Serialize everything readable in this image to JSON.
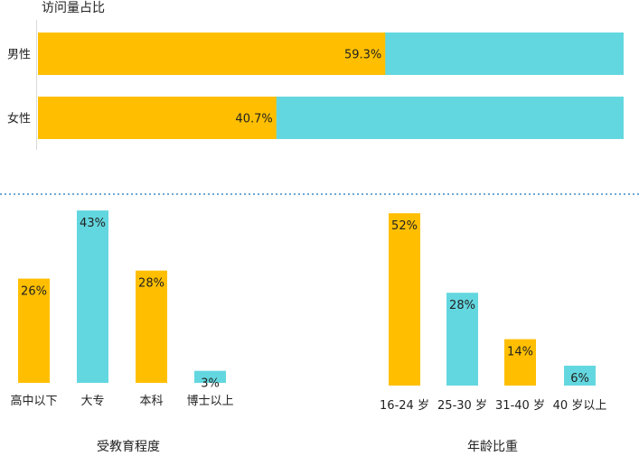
{
  "colors": {
    "orange": "#FFBF00",
    "cyan": "#63D7DF",
    "divider": "#6FA8D6"
  },
  "chart_data": [
    {
      "type": "bar",
      "orientation": "horizontal-stacked",
      "title": "访问量占比",
      "categories": [
        "男性",
        "女性"
      ],
      "values": [
        59.3,
        40.7
      ],
      "labels": [
        "59.3%",
        "40.7%"
      ],
      "total": 100,
      "xlim": [
        0,
        100
      ]
    },
    {
      "type": "bar",
      "title": "受教育程度",
      "categories": [
        "高中以下",
        "大专",
        "本科",
        "博士以上"
      ],
      "values": [
        26,
        43,
        28,
        3
      ],
      "labels": [
        "26%",
        "43%",
        "28%",
        "3%"
      ],
      "bar_colors": [
        "orange",
        "cyan",
        "orange",
        "cyan"
      ],
      "ylim": [
        0,
        50
      ]
    },
    {
      "type": "bar",
      "title": "年龄比重",
      "categories": [
        "16-24 岁",
        "25-30 岁",
        "31-40 岁",
        "40 岁以上"
      ],
      "values": [
        52,
        28,
        14,
        6
      ],
      "labels": [
        "52%",
        "28%",
        "14%",
        "6%"
      ],
      "bar_colors": [
        "orange",
        "cyan",
        "orange",
        "cyan"
      ],
      "ylim": [
        0,
        60
      ]
    }
  ]
}
